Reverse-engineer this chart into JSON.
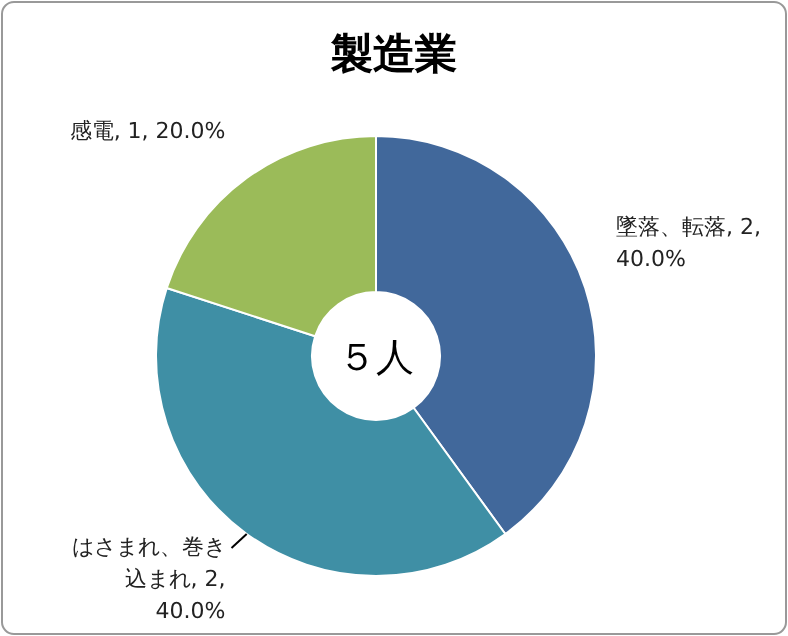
{
  "chart_data": {
    "type": "donut",
    "title": "製造業",
    "categories": [
      "墜落、転落",
      "はさまれ、巻き込まれ",
      "感電"
    ],
    "values": [
      2,
      2,
      1
    ],
    "value_labels": [
      "2, 40.0%",
      "2, 40.0%",
      "1, 20.0%"
    ],
    "colors": [
      "#41689b",
      "#3f8fa5",
      "#9bbb59"
    ],
    "annotations": [
      "５人"
    ]
  }
}
